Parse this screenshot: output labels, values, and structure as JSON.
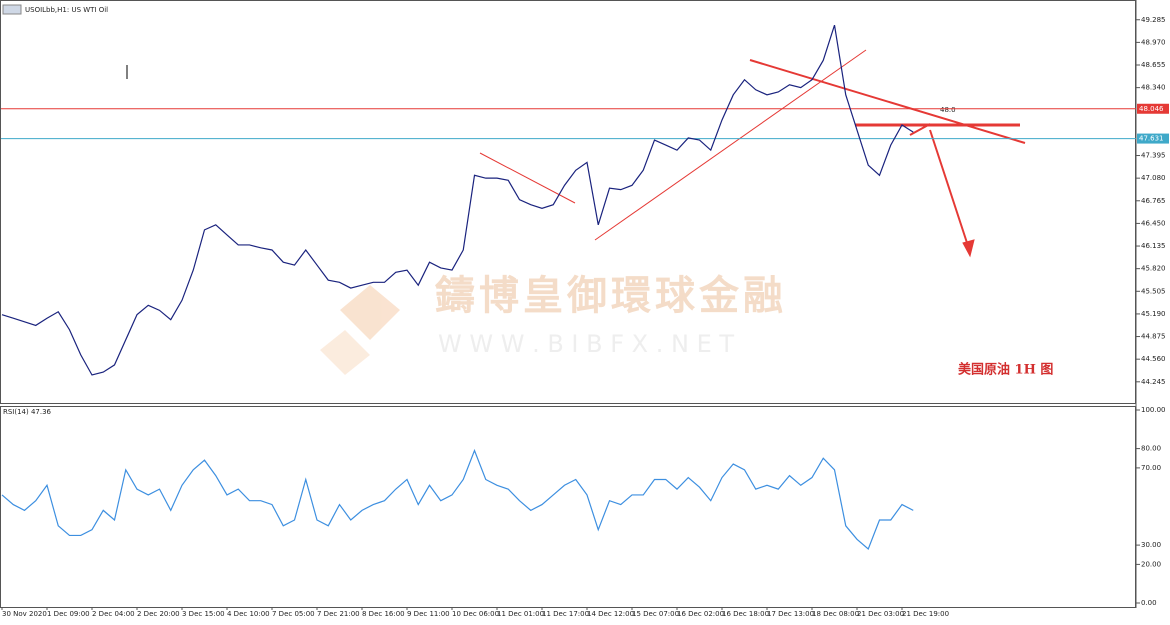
{
  "chart_data": [
    {
      "type": "line",
      "title": "USOILbb,H1: US WTI Oil",
      "categories": [
        "30 Nov 2020",
        null,
        null,
        null,
        "1 Dec 09:00",
        null,
        null,
        null,
        "2 Dec 04:00",
        null,
        null,
        null,
        "2 Dec 20:00",
        null,
        null,
        null,
        "3 Dec 15:00",
        null,
        null,
        null,
        "4 Dec 10:00",
        null,
        null,
        null,
        "7 Dec 05:00",
        null,
        null,
        null,
        "7 Dec 21:00",
        null,
        null,
        null,
        "8 Dec 16:00",
        null,
        null,
        null,
        "9 Dec 11:00",
        null,
        null,
        null,
        "10 Dec 06:00",
        null,
        null,
        null,
        "11 Dec 01:00",
        null,
        null,
        null,
        "11 Dec 17:00",
        null,
        null,
        null,
        "14 Dec 12:00",
        null,
        null,
        null,
        "15 Dec 07:00",
        null,
        null,
        null,
        "16 Dec 02:00",
        null,
        null,
        null,
        "16 Dec 18:00",
        null,
        null,
        null,
        "17 Dec 13:00",
        null,
        null,
        null,
        "18 Dec 08:00",
        null,
        null,
        null,
        "21 Dec 03:00",
        null,
        null,
        null,
        "21 Dec 19:00",
        null
      ],
      "values": [
        45.18,
        45.13,
        45.08,
        45.03,
        45.13,
        45.22,
        44.97,
        44.62,
        44.34,
        44.38,
        44.48,
        44.83,
        45.18,
        45.31,
        45.24,
        45.11,
        45.38,
        45.8,
        46.36,
        46.43,
        46.29,
        46.15,
        46.15,
        46.11,
        46.08,
        45.91,
        45.87,
        46.08,
        45.87,
        45.66,
        45.63,
        45.55,
        45.59,
        45.63,
        45.63,
        45.77,
        45.8,
        45.59,
        45.91,
        45.83,
        45.8,
        46.08,
        47.12,
        47.08,
        47.08,
        47.05,
        46.78,
        46.71,
        46.66,
        46.71,
        46.98,
        47.19,
        47.3,
        46.43,
        46.94,
        46.92,
        46.98,
        47.19,
        47.61,
        47.54,
        47.47,
        47.64,
        47.61,
        47.47,
        47.89,
        48.24,
        48.45,
        48.31,
        48.24,
        48.28,
        48.38,
        48.34,
        48.45,
        48.72,
        49.21,
        48.24,
        47.75,
        47.26,
        47.12,
        47.54,
        47.82,
        47.72
      ],
      "color": "#1a237e",
      "ylim": [
        43.95,
        49.56
      ],
      "yticks": [
        49.285,
        {
          "value": 48.97,
          "label": "48.970"
        },
        48.655,
        {
          "value": 48.34,
          "label": "48.340"
        },
        47.395,
        {
          "value": 47.08,
          "label": "47.080"
        },
        46.765,
        {
          "value": 46.45,
          "label": "46.450"
        },
        46.135,
        {
          "value": 45.82,
          "label": "45.820"
        },
        45.505,
        {
          "value": 45.19,
          "label": "45.190"
        },
        44.875,
        {
          "value": 44.56,
          "label": "44.560"
        },
        44.245
      ],
      "price_levels": [
        {
          "value": 48.046,
          "label": "48.046",
          "color": "#e53935"
        },
        {
          "value": 47.631,
          "label": "47.631",
          "color": "#3fa9c9"
        }
      ],
      "level_note": "48.0",
      "caption": "美国原油 1H 图",
      "watermark_name": "鑄博皇御環球金融",
      "watermark_url": "W W W . B I B F X . N E T"
    },
    {
      "type": "line",
      "title": "RSI(14) 47.36",
      "values": [
        56,
        51,
        48,
        53,
        61,
        40,
        35,
        35,
        38,
        48,
        43,
        69,
        59,
        56,
        59,
        48,
        61,
        69,
        74,
        66,
        56,
        59,
        53,
        53,
        51,
        40,
        43,
        64,
        43,
        40,
        51,
        43,
        48,
        51,
        53,
        59,
        64,
        51,
        61,
        53,
        56,
        64,
        79,
        64,
        61,
        59,
        53,
        48,
        51,
        56,
        61,
        64,
        56,
        38,
        53,
        51,
        56,
        56,
        64,
        64,
        59,
        65,
        60,
        53,
        65,
        72,
        69,
        59,
        61,
        59,
        66,
        61,
        65,
        75,
        69,
        40,
        33,
        28,
        43,
        43,
        51,
        48
      ],
      "color": "#3d8fe0",
      "ylim": [
        0,
        100
      ],
      "yticks": [
        {
          "value": 100,
          "label": "100.00"
        },
        {
          "value": 80,
          "label": "80.00"
        },
        {
          "value": 70,
          "label": "70.00"
        },
        {
          "value": 30,
          "label": "30.00"
        },
        {
          "value": 20,
          "label": "20.00"
        },
        {
          "value": 0,
          "label": "0.00"
        }
      ]
    }
  ]
}
